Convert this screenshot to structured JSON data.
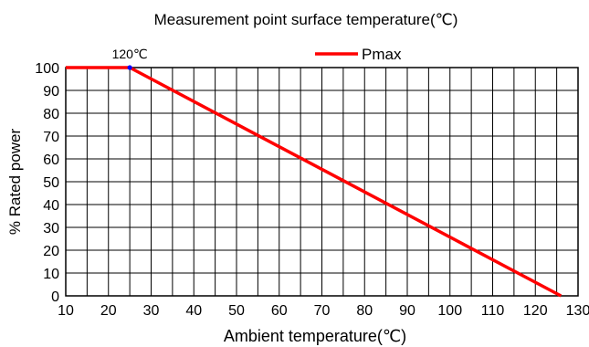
{
  "chart_data": {
    "type": "line",
    "title": "Measurement point surface temperature(℃)",
    "xlabel": "Ambient temperature(℃)",
    "ylabel": "% Rated power",
    "xlim": [
      10,
      130
    ],
    "ylim": [
      0,
      100
    ],
    "x_ticks": [
      10,
      20,
      30,
      40,
      50,
      60,
      70,
      80,
      90,
      100,
      110,
      120,
      130
    ],
    "y_ticks": [
      0,
      10,
      20,
      30,
      40,
      50,
      60,
      70,
      80,
      90,
      100
    ],
    "grid": true,
    "legend_position": "top-right",
    "series": [
      {
        "name": "Pmax",
        "color": "#ff0000",
        "points": [
          [
            10,
            100
          ],
          [
            25,
            100
          ],
          [
            126,
            0
          ]
        ]
      }
    ],
    "annotations": [
      {
        "text": "120℃",
        "x": 25,
        "y": 100,
        "marker_color": "#0000ff"
      }
    ]
  }
}
